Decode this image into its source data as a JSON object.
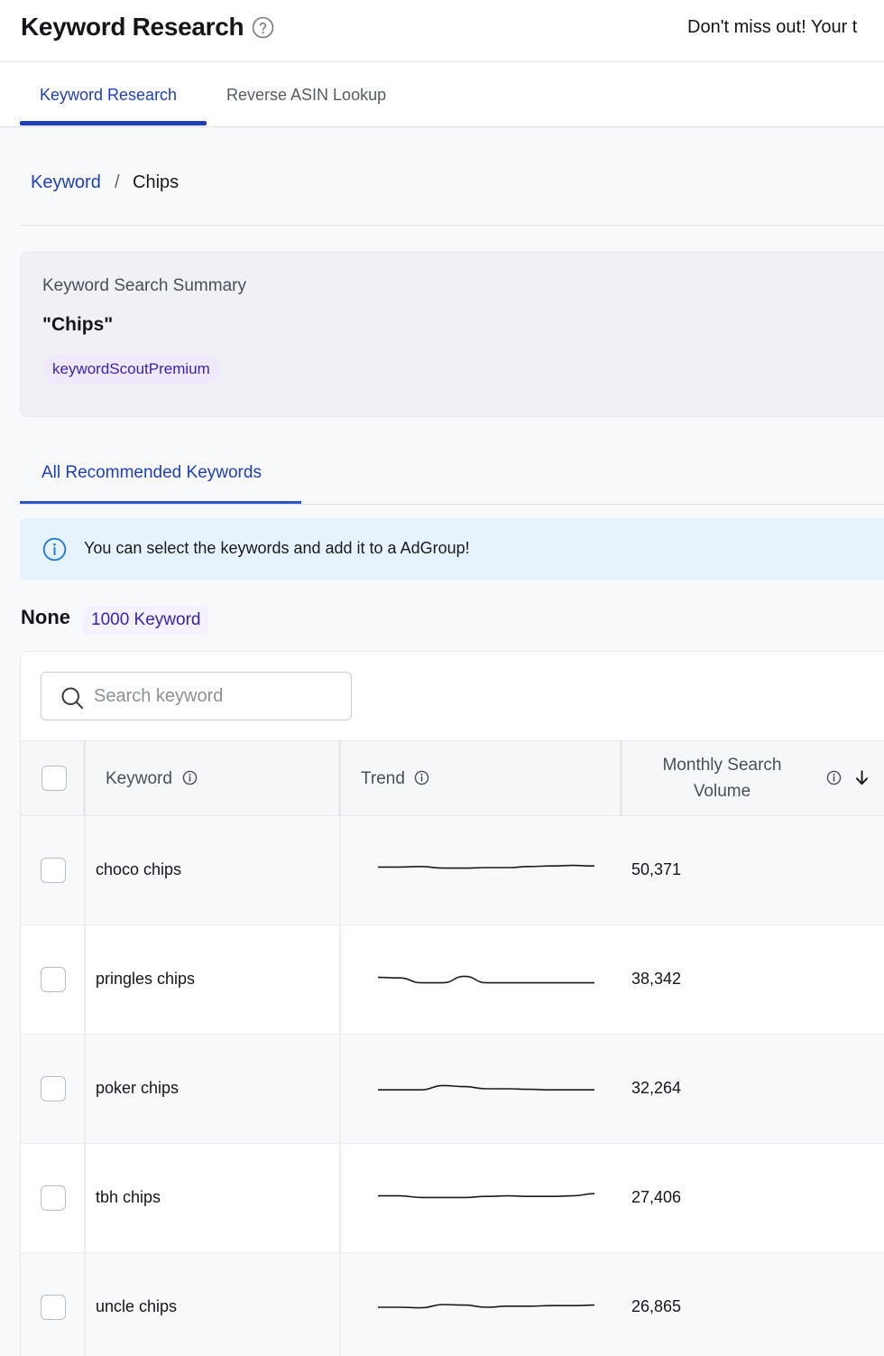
{
  "header": {
    "title": "Keyword Research",
    "promo_text": "Don't miss out! Your t"
  },
  "tabs": [
    {
      "label": "Keyword Research",
      "active": true
    },
    {
      "label": "Reverse ASIN Lookup",
      "active": false
    }
  ],
  "breadcrumb": {
    "parent": "Keyword",
    "separator": "/",
    "current": "Chips"
  },
  "summary": {
    "title": "Keyword Search Summary",
    "keyword": "\"Chips\"",
    "badge": "keywordScoutPremium"
  },
  "sub_tabs": [
    {
      "label": "All Recommended Keywords",
      "active": true
    }
  ],
  "info": {
    "message": "You can select the keywords and add it to a AdGroup!"
  },
  "group": {
    "title": "None",
    "count": "1000 Keyword"
  },
  "search": {
    "placeholder": "Search keyword",
    "value": ""
  },
  "table": {
    "columns": {
      "keyword": "Keyword",
      "trend": "Trend",
      "volume": "Monthly Search Volume"
    },
    "sort": "descending",
    "rows": [
      {
        "keyword": "choco chips",
        "volume": "50,371",
        "trend": [
          0.2,
          0.2,
          0.15,
          0.3,
          0.3,
          0.25,
          0.25,
          0.15,
          0.1,
          0.05,
          0.1
        ]
      },
      {
        "keyword": "pringles chips",
        "volume": "38,342",
        "trend": [
          0.3,
          0.35,
          0.8,
          0.8,
          0.2,
          0.8,
          0.8,
          0.8,
          0.8,
          0.8,
          0.8
        ]
      },
      {
        "keyword": "poker chips",
        "volume": "32,264",
        "trend": [
          0.6,
          0.6,
          0.6,
          0.2,
          0.3,
          0.5,
          0.5,
          0.55,
          0.6,
          0.6,
          0.6
        ]
      },
      {
        "keyword": "tbh chips",
        "volume": "27,406",
        "trend": [
          0.3,
          0.3,
          0.45,
          0.45,
          0.45,
          0.35,
          0.3,
          0.35,
          0.35,
          0.3,
          0.1
        ]
      },
      {
        "keyword": "uncle chips",
        "volume": "26,865",
        "trend": [
          0.5,
          0.5,
          0.55,
          0.25,
          0.3,
          0.5,
          0.4,
          0.4,
          0.35,
          0.35,
          0.3
        ]
      }
    ]
  },
  "colors": {
    "accent": "#1f3fb4",
    "badge_text": "#3b1fb4",
    "badge_bg": "#efe9fb",
    "info_bg": "#e7f3fc",
    "info_icon": "#2a7bd4"
  },
  "icons": {
    "help": "question-circle-icon",
    "info": "info-circle-icon",
    "search": "search-icon",
    "sort": "arrow-down-icon"
  }
}
